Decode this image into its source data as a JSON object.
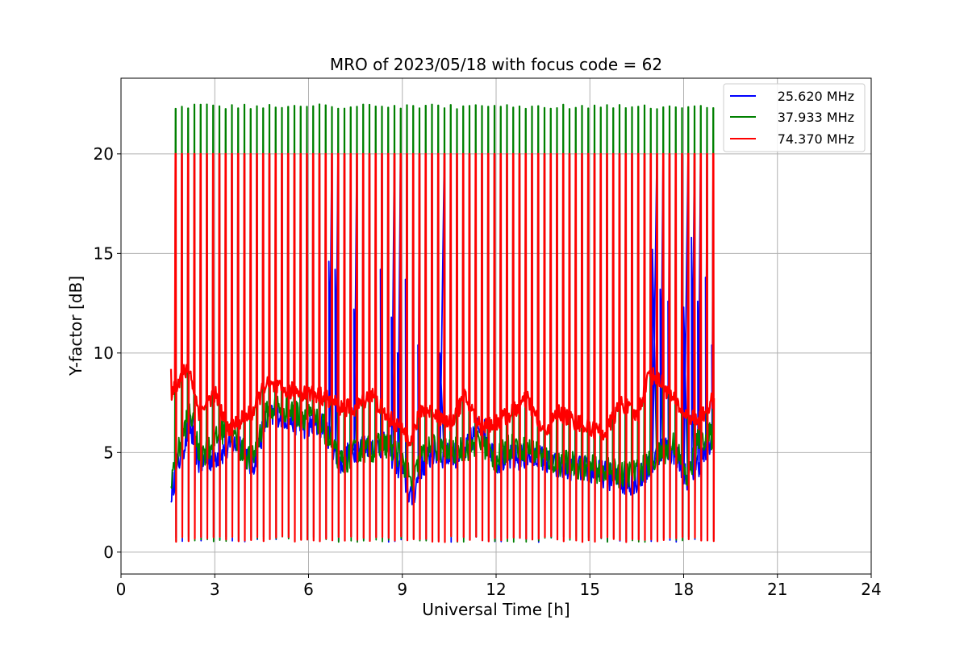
{
  "chart_data": {
    "type": "line",
    "title": "MRO of 2023/05/18 with focus code = 62",
    "xlabel": "Universal Time [h]",
    "ylabel": "Y-factor [dB]",
    "xlim": [
      0,
      24
    ],
    "ylim": [
      -1.1,
      23.8
    ],
    "xticks": [
      0,
      3,
      6,
      9,
      12,
      15,
      18,
      21,
      24
    ],
    "yticks": [
      0,
      5,
      10,
      15,
      20
    ],
    "grid": true,
    "legend_position": "top-right",
    "pulse_period_h": 0.2,
    "pulse_start_h": 1.75,
    "pulse_end_h": 19.0,
    "pulse_peak_db": {
      "25.620 MHz": 20.0,
      "37.933 MHz": 22.5,
      "74.370 MHz": 20.0
    },
    "pulse_floor_db": 0.5,
    "series": [
      {
        "name": "25.620 MHz",
        "color": "#0000ff",
        "baseline": {
          "x": [
            1.6,
            1.8,
            2.2,
            2.5,
            3.0,
            3.4,
            3.8,
            4.2,
            4.6,
            5.0,
            5.5,
            6.0,
            6.5,
            7.0,
            7.5,
            8.0,
            8.5,
            9.0,
            9.3,
            9.6,
            10.0,
            10.5,
            11.0,
            11.5,
            12.0,
            12.5,
            13.0,
            13.5,
            14.0,
            14.5,
            15.0,
            15.5,
            16.0,
            16.5,
            16.9,
            17.3,
            17.7,
            18.1,
            18.5,
            19.0
          ],
          "y": [
            3.0,
            4.3,
            6.3,
            4.5,
            4.8,
            5.2,
            5.5,
            4.2,
            6.5,
            7.0,
            6.6,
            6.3,
            6.4,
            4.5,
            5.2,
            5.5,
            5.3,
            4.0,
            2.6,
            4.3,
            5.0,
            4.8,
            5.0,
            6.5,
            4.6,
            4.7,
            4.8,
            4.7,
            4.2,
            4.3,
            4.1,
            3.9,
            3.5,
            3.6,
            4.2,
            5.3,
            5.0,
            3.8,
            4.5,
            5.8
          ]
        },
        "spikes": {
          "x": [
            6.65,
            6.85,
            7.15,
            7.45,
            7.75,
            7.95,
            8.3,
            8.65,
            8.85,
            9.1,
            9.5,
            9.75,
            10.2,
            10.95,
            11.15,
            11.35,
            17.0,
            17.25,
            17.5,
            17.75,
            18.0,
            18.25,
            18.45,
            18.7,
            18.9
          ],
          "y": [
            14.6,
            14.2,
            11.7,
            12.2,
            12.6,
            12.0,
            14.2,
            11.8,
            10.0,
            13.7,
            10.4,
            13.0,
            10.0,
            15.2,
            15.9,
            14.7,
            15.2,
            13.2,
            12.6,
            11.5,
            12.3,
            15.8,
            12.6,
            13.8,
            10.4
          ]
        }
      },
      {
        "name": "37.933 MHz",
        "color": "#008000",
        "baseline": {
          "x": [
            1.6,
            1.8,
            2.2,
            2.5,
            3.0,
            3.4,
            3.8,
            4.2,
            4.6,
            5.0,
            5.5,
            6.0,
            6.5,
            7.0,
            7.5,
            8.0,
            8.5,
            9.0,
            9.3,
            9.6,
            10.0,
            10.5,
            11.0,
            11.5,
            12.0,
            12.5,
            13.0,
            13.5,
            14.0,
            14.5,
            15.0,
            15.5,
            16.0,
            16.5,
            16.9,
            17.3,
            17.7,
            18.1,
            18.5,
            19.0
          ],
          "y": [
            3.8,
            4.8,
            7.2,
            4.8,
            5.5,
            6.5,
            5.2,
            4.6,
            6.8,
            7.4,
            7.0,
            6.8,
            6.2,
            4.4,
            5.0,
            5.2,
            5.4,
            4.8,
            3.2,
            4.8,
            5.3,
            5.0,
            5.2,
            5.6,
            4.6,
            5.4,
            5.2,
            4.8,
            4.5,
            4.4,
            4.2,
            4.1,
            3.9,
            4.0,
            4.4,
            5.0,
            5.5,
            3.6,
            5.8,
            5.8
          ]
        }
      },
      {
        "name": "74.370 MHz",
        "color": "#ff0000",
        "baseline": {
          "x": [
            1.6,
            1.8,
            2.0,
            2.2,
            2.5,
            3.0,
            3.4,
            3.8,
            4.2,
            4.6,
            5.0,
            5.5,
            6.0,
            6.5,
            7.0,
            7.5,
            8.0,
            8.5,
            9.0,
            9.3,
            9.6,
            10.0,
            10.5,
            11.0,
            11.5,
            12.0,
            12.5,
            13.0,
            13.5,
            14.0,
            14.5,
            15.0,
            15.5,
            16.0,
            16.5,
            16.9,
            17.3,
            17.7,
            18.1,
            18.5,
            19.0
          ],
          "y": [
            8.0,
            8.5,
            9.0,
            9.1,
            7.0,
            8.0,
            6.2,
            6.6,
            7.0,
            8.4,
            8.2,
            8.1,
            8.0,
            7.8,
            7.3,
            7.2,
            8.0,
            6.8,
            6.2,
            5.6,
            7.2,
            7.0,
            6.4,
            7.8,
            6.3,
            6.5,
            7.0,
            7.7,
            6.0,
            7.0,
            6.6,
            6.2,
            6.0,
            7.5,
            6.8,
            9.0,
            8.5,
            7.6,
            6.9,
            6.6,
            7.8
          ]
        }
      }
    ]
  }
}
